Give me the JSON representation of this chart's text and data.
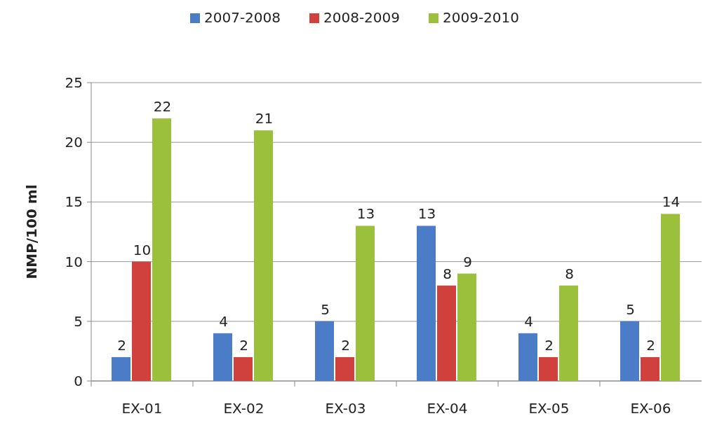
{
  "chart_data": {
    "type": "bar",
    "ylabel": "NMP/100 ml",
    "categories": [
      "EX-01",
      "EX-02",
      "EX-03",
      "EX-04",
      "EX-05",
      "EX-06"
    ],
    "series": [
      {
        "name": "2007-2008",
        "color": "#4a7cc8",
        "values": [
          2,
          4,
          5,
          13,
          4,
          5
        ]
      },
      {
        "name": "2008-2009",
        "color": "#d0413d",
        "values": [
          10,
          2,
          2,
          8,
          2,
          2
        ]
      },
      {
        "name": "2009-2010",
        "color": "#9bc13c",
        "values": [
          22,
          21,
          13,
          9,
          8,
          14
        ]
      }
    ],
    "ylim": [
      0,
      25
    ],
    "yticks": [
      0,
      5,
      10,
      15,
      20,
      25
    ],
    "grid": "y",
    "legend": "top",
    "data_labels": true
  }
}
